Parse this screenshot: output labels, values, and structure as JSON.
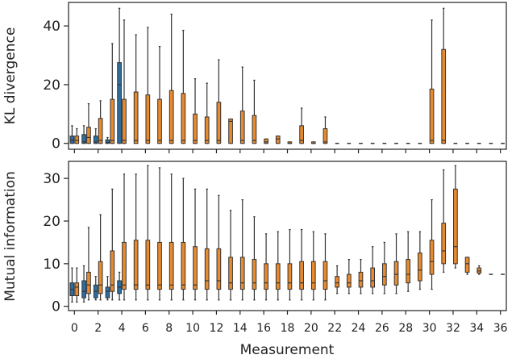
{
  "colors": {
    "blue": "#2f6d9e",
    "orange": "#e88a2e",
    "whisker": "#333333",
    "axis": "#222222"
  },
  "chart_data": [
    {
      "type": "box",
      "name": "kl-divergence",
      "ylabel": "KL divergence",
      "ylim": [
        -2,
        48
      ],
      "yticks": [
        0,
        20,
        40
      ],
      "xlim": [
        -0.5,
        36.5
      ],
      "xticks": [
        0,
        2,
        4,
        6,
        8,
        10,
        12,
        14,
        16,
        18,
        20,
        22,
        24,
        26,
        28,
        30,
        32,
        34,
        36
      ],
      "series": [
        {
          "name": "blue",
          "boxes": [
            {
              "x": 0,
              "whislo": 0,
              "q1": 0,
              "med": 1,
              "q3": 2.5,
              "whishi": 6
            },
            {
              "x": 1,
              "whislo": 0,
              "q1": 0,
              "med": 0.5,
              "q3": 3,
              "whishi": 6
            },
            {
              "x": 2,
              "whislo": 0,
              "q1": 0,
              "med": 0.5,
              "q3": 2.5,
              "whishi": 5
            },
            {
              "x": 3,
              "whislo": 0,
              "q1": 0,
              "med": 0.3,
              "q3": 1.2,
              "whishi": 2
            },
            {
              "x": 4,
              "whislo": 0,
              "q1": 0,
              "med": 20,
              "q3": 27.5,
              "whishi": 46
            }
          ]
        },
        {
          "name": "orange",
          "boxes": [
            {
              "x": 0,
              "whislo": 0,
              "q1": 0,
              "med": 1,
              "q3": 2.5,
              "whishi": 5
            },
            {
              "x": 1,
              "whislo": 0,
              "q1": 0,
              "med": 2,
              "q3": 5.5,
              "whishi": 13.5
            },
            {
              "x": 2,
              "whislo": 0,
              "q1": 0,
              "med": 1,
              "q3": 8.5,
              "whishi": 14.5
            },
            {
              "x": 3,
              "whislo": 0,
              "q1": 0,
              "med": 1,
              "q3": 15,
              "whishi": 34
            },
            {
              "x": 4,
              "whislo": 0,
              "q1": 0,
              "med": 1,
              "q3": 15,
              "whishi": 42
            },
            {
              "x": 5,
              "whislo": 0,
              "q1": 0,
              "med": 1,
              "q3": 17.5,
              "whishi": 37
            },
            {
              "x": 6,
              "whislo": 0,
              "q1": 0,
              "med": 1,
              "q3": 16.5,
              "whishi": 39.5
            },
            {
              "x": 7,
              "whislo": 0,
              "q1": 0,
              "med": 1,
              "q3": 15,
              "whishi": 33
            },
            {
              "x": 8,
              "whislo": 0,
              "q1": 0,
              "med": 1,
              "q3": 18,
              "whishi": 44
            },
            {
              "x": 9,
              "whislo": 0,
              "q1": 0,
              "med": 1,
              "q3": 17,
              "whishi": 38.5
            },
            {
              "x": 10,
              "whislo": 0,
              "q1": 0,
              "med": 1,
              "q3": 10,
              "whishi": 22
            },
            {
              "x": 11,
              "whislo": 0,
              "q1": 0,
              "med": 1,
              "q3": 9,
              "whishi": 20.5
            },
            {
              "x": 12,
              "whislo": 0,
              "q1": 0,
              "med": 1,
              "q3": 14,
              "whishi": 28.5
            },
            {
              "x": 13,
              "whislo": 0,
              "q1": 0,
              "med": 7.5,
              "q3": 8.3,
              "whishi": 8.3
            },
            {
              "x": 14,
              "whislo": 0,
              "q1": 0,
              "med": 1,
              "q3": 11,
              "whishi": 26
            },
            {
              "x": 15,
              "whislo": 0,
              "q1": 0,
              "med": 1,
              "q3": 9.5,
              "whishi": 21.5
            },
            {
              "x": 16,
              "whislo": 0,
              "q1": 0,
              "med": 0.5,
              "q3": 1.5,
              "whishi": 1.5
            },
            {
              "x": 17,
              "whislo": 0,
              "q1": 0,
              "med": 1.5,
              "q3": 2.5,
              "whishi": 2.5
            },
            {
              "x": 18,
              "whislo": 0,
              "q1": 0,
              "med": 0,
              "q3": 0.5,
              "whishi": 0.5
            },
            {
              "x": 19,
              "whislo": 0,
              "q1": 0,
              "med": 1,
              "q3": 6,
              "whishi": 12
            },
            {
              "x": 20,
              "whislo": 0,
              "q1": 0,
              "med": 0,
              "q3": 0.5,
              "whishi": 0.5
            },
            {
              "x": 21,
              "whislo": 0,
              "q1": 0,
              "med": 0.5,
              "q3": 5,
              "whishi": 9
            },
            {
              "x": 22,
              "whislo": 0,
              "q1": 0,
              "med": 0,
              "q3": 0,
              "whishi": 0
            },
            {
              "x": 23,
              "whislo": 0,
              "q1": 0,
              "med": 0,
              "q3": 0,
              "whishi": 0
            },
            {
              "x": 24,
              "whislo": 0,
              "q1": 0,
              "med": 0,
              "q3": 0,
              "whishi": 0
            },
            {
              "x": 25,
              "whislo": 0,
              "q1": 0,
              "med": 0,
              "q3": 0,
              "whishi": 0
            },
            {
              "x": 26,
              "whislo": 0,
              "q1": 0,
              "med": 0,
              "q3": 0,
              "whishi": 0
            },
            {
              "x": 27,
              "whislo": 0,
              "q1": 0,
              "med": 0,
              "q3": 0,
              "whishi": 0
            },
            {
              "x": 28,
              "whislo": 0,
              "q1": 0,
              "med": 0,
              "q3": 0,
              "whishi": 0
            },
            {
              "x": 29,
              "whislo": 0,
              "q1": 0,
              "med": 0,
              "q3": 0,
              "whishi": 0
            },
            {
              "x": 30,
              "whislo": 0,
              "q1": 0,
              "med": 1,
              "q3": 18.5,
              "whishi": 42
            },
            {
              "x": 31,
              "whislo": 0,
              "q1": 0,
              "med": 1,
              "q3": 32,
              "whishi": 46
            },
            {
              "x": 32,
              "whislo": 0,
              "q1": 0,
              "med": 0,
              "q3": 0,
              "whishi": 0
            },
            {
              "x": 33,
              "whislo": 0,
              "q1": 0,
              "med": 0,
              "q3": 0,
              "whishi": 0
            },
            {
              "x": 34,
              "whislo": 0,
              "q1": 0,
              "med": 0,
              "q3": 0,
              "whishi": 0
            },
            {
              "x": 35,
              "whislo": 0,
              "q1": 0,
              "med": 0,
              "q3": 0,
              "whishi": 0
            },
            {
              "x": 36,
              "whislo": 0,
              "q1": 0,
              "med": 0,
              "q3": 0,
              "whishi": 0
            }
          ]
        }
      ]
    },
    {
      "type": "box",
      "name": "mutual-information",
      "ylabel": "Mutual information",
      "xlabel": "Measurement",
      "ylim": [
        -1,
        34
      ],
      "yticks": [
        0,
        10,
        20,
        30
      ],
      "xlim": [
        -0.5,
        36.5
      ],
      "xticks": [
        0,
        2,
        4,
        6,
        8,
        10,
        12,
        14,
        16,
        18,
        20,
        22,
        24,
        26,
        28,
        30,
        32,
        34,
        36
      ],
      "series": [
        {
          "name": "blue",
          "boxes": [
            {
              "x": 0,
              "whislo": 1,
              "q1": 2.5,
              "med": 4,
              "q3": 5.5,
              "whishi": 9
            },
            {
              "x": 1,
              "whislo": 1,
              "q1": 2,
              "med": 3.5,
              "q3": 6,
              "whishi": 9.5
            },
            {
              "x": 2,
              "whislo": 1.5,
              "q1": 2,
              "med": 3.5,
              "q3": 5,
              "whishi": 7
            },
            {
              "x": 3,
              "whislo": 1.5,
              "q1": 2,
              "med": 3.5,
              "q3": 4.5,
              "whishi": 7
            },
            {
              "x": 4,
              "whislo": 1.5,
              "q1": 3,
              "med": 4.5,
              "q3": 6,
              "whishi": 8
            }
          ]
        },
        {
          "name": "orange",
          "boxes": [
            {
              "x": 0,
              "whislo": 1,
              "q1": 2.5,
              "med": 4.5,
              "q3": 5.5,
              "whishi": 9
            },
            {
              "x": 1,
              "whislo": 1.5,
              "q1": 3,
              "med": 5,
              "q3": 8,
              "whishi": 18.5
            },
            {
              "x": 2,
              "whislo": 1.5,
              "q1": 3,
              "med": 5,
              "q3": 10.5,
              "whishi": 21.5
            },
            {
              "x": 3,
              "whislo": 1.5,
              "q1": 3.5,
              "med": 5,
              "q3": 13,
              "whishi": 27.5
            },
            {
              "x": 4,
              "whislo": 1.5,
              "q1": 4,
              "med": 5,
              "q3": 15,
              "whishi": 31
            },
            {
              "x": 5,
              "whislo": 1.5,
              "q1": 4,
              "med": 5,
              "q3": 15.5,
              "whishi": 31
            },
            {
              "x": 6,
              "whislo": 1.5,
              "q1": 4,
              "med": 5,
              "q3": 15.5,
              "whishi": 33
            },
            {
              "x": 7,
              "whislo": 1.5,
              "q1": 4,
              "med": 5,
              "q3": 15,
              "whishi": 32.5
            },
            {
              "x": 8,
              "whislo": 1.5,
              "q1": 4,
              "med": 5,
              "q3": 15,
              "whishi": 31
            },
            {
              "x": 9,
              "whislo": 1.5,
              "q1": 4,
              "med": 5,
              "q3": 15,
              "whishi": 30
            },
            {
              "x": 10,
              "whislo": 1.5,
              "q1": 4,
              "med": 5,
              "q3": 14,
              "whishi": 27.5
            },
            {
              "x": 11,
              "whislo": 1.5,
              "q1": 4,
              "med": 6,
              "q3": 13.5,
              "whishi": 27.5
            },
            {
              "x": 12,
              "whislo": 1.5,
              "q1": 4,
              "med": 6,
              "q3": 13.5,
              "whishi": 26
            },
            {
              "x": 13,
              "whislo": 1.5,
              "q1": 4,
              "med": 5.5,
              "q3": 11.5,
              "whishi": 22.5
            },
            {
              "x": 14,
              "whislo": 1.5,
              "q1": 4,
              "med": 5.5,
              "q3": 11.5,
              "whishi": 25
            },
            {
              "x": 15,
              "whislo": 1.5,
              "q1": 4,
              "med": 5.5,
              "q3": 11,
              "whishi": 21
            },
            {
              "x": 16,
              "whislo": 1.5,
              "q1": 4,
              "med": 5.5,
              "q3": 10,
              "whishi": 17
            },
            {
              "x": 17,
              "whislo": 1.5,
              "q1": 4,
              "med": 5.5,
              "q3": 10,
              "whishi": 17.5
            },
            {
              "x": 18,
              "whislo": 1.5,
              "q1": 4,
              "med": 5.5,
              "q3": 10,
              "whishi": 18
            },
            {
              "x": 19,
              "whislo": 1.5,
              "q1": 4,
              "med": 5.5,
              "q3": 10.5,
              "whishi": 18
            },
            {
              "x": 20,
              "whislo": 1.5,
              "q1": 4,
              "med": 5.5,
              "q3": 10.5,
              "whishi": 17.5
            },
            {
              "x": 21,
              "whislo": 1.5,
              "q1": 4,
              "med": 6,
              "q3": 10.5,
              "whishi": 17
            },
            {
              "x": 22,
              "whislo": 3,
              "q1": 4.5,
              "med": 5.5,
              "q3": 7,
              "whishi": 9.5
            },
            {
              "x": 23,
              "whislo": 3,
              "q1": 4.5,
              "med": 5.5,
              "q3": 7.5,
              "whishi": 11
            },
            {
              "x": 24,
              "whislo": 3,
              "q1": 4.5,
              "med": 6,
              "q3": 8,
              "whishi": 11
            },
            {
              "x": 25,
              "whislo": 3,
              "q1": 4.5,
              "med": 6,
              "q3": 9,
              "whishi": 14
            },
            {
              "x": 26,
              "whislo": 3,
              "q1": 5,
              "med": 7,
              "q3": 10,
              "whishi": 15
            },
            {
              "x": 27,
              "whislo": 3,
              "q1": 5,
              "med": 7.5,
              "q3": 10.5,
              "whishi": 17
            },
            {
              "x": 28,
              "whislo": 3.5,
              "q1": 5.5,
              "med": 7.5,
              "q3": 11,
              "whishi": 17.5
            },
            {
              "x": 29,
              "whislo": 4,
              "q1": 6,
              "med": 8.5,
              "q3": 12.5,
              "whishi": 17.5
            },
            {
              "x": 30,
              "whislo": 4,
              "q1": 7.5,
              "med": 10.5,
              "q3": 15.5,
              "whishi": 25
            },
            {
              "x": 31,
              "whislo": 8,
              "q1": 10,
              "med": 13,
              "q3": 19.5,
              "whishi": 32
            },
            {
              "x": 32,
              "whislo": 9,
              "q1": 10,
              "med": 14,
              "q3": 27.5,
              "whishi": 33
            },
            {
              "x": 33,
              "whislo": 7.5,
              "q1": 8,
              "med": 10,
              "q3": 11.5,
              "whishi": 11.5
            },
            {
              "x": 34,
              "whislo": 7.5,
              "q1": 7.8,
              "med": 8.3,
              "q3": 9,
              "whishi": 9.5
            },
            {
              "x": 35,
              "whislo": 7.5,
              "q1": 7.5,
              "med": 7.5,
              "q3": 7.5,
              "whishi": 7.5
            },
            {
              "x": 36,
              "whislo": 7.5,
              "q1": 7.5,
              "med": 7.5,
              "q3": 7.5,
              "whishi": 7.5
            }
          ]
        }
      ]
    }
  ]
}
